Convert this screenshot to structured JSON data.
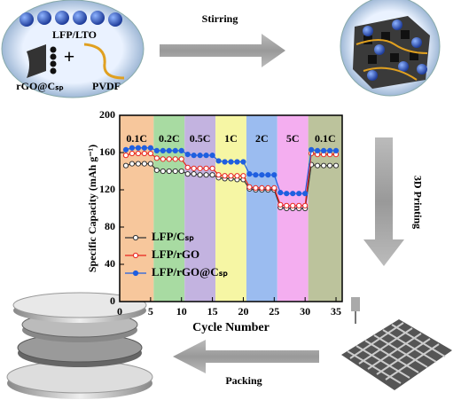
{
  "chart_data": {
    "type": "line",
    "xlabel": "Cycle Number",
    "ylabel": "Specific Capacity (mAh g⁻¹)",
    "xlim": [
      0,
      36
    ],
    "xticks": [
      0,
      5,
      10,
      15,
      20,
      25,
      30,
      35
    ],
    "ylim": [
      0,
      200
    ],
    "yticks": [
      0,
      40,
      80,
      120,
      160,
      200
    ],
    "legend": "lower left",
    "regions": [
      {
        "label": "0.1C",
        "start": 0,
        "end": 5.5,
        "color": "#f7c79c"
      },
      {
        "label": "0.2C",
        "start": 5.5,
        "end": 10.5,
        "color": "#a8dba2"
      },
      {
        "label": "0.5C",
        "start": 10.5,
        "end": 15.5,
        "color": "#c3b3e0"
      },
      {
        "label": "1C",
        "start": 15.5,
        "end": 20.5,
        "color": "#f6f6a4"
      },
      {
        "label": "2C",
        "start": 20.5,
        "end": 25.5,
        "color": "#9bbcf0"
      },
      {
        "label": "5C",
        "start": 25.5,
        "end": 30.5,
        "color": "#f4aef0"
      },
      {
        "label": "0.1C",
        "start": 30.5,
        "end": 36,
        "color": "#bcc39c"
      }
    ],
    "x": [
      1,
      2,
      3,
      4,
      5,
      6,
      7,
      8,
      9,
      10,
      11,
      12,
      13,
      14,
      15,
      16,
      17,
      18,
      19,
      20,
      21,
      22,
      23,
      24,
      25,
      26,
      27,
      28,
      29,
      30,
      31,
      32,
      33,
      34,
      35
    ],
    "series": [
      {
        "name": "LFP/Cₛₚ",
        "color": "#333333",
        "marker": "open",
        "values": [
          146,
          148,
          148,
          148,
          148,
          141,
          140,
          140,
          140,
          140,
          137,
          137,
          136,
          136,
          136,
          133,
          132,
          132,
          131,
          131,
          121,
          120,
          120,
          120,
          120,
          101,
          100,
          100,
          100,
          100,
          147,
          146,
          146,
          146,
          146
        ]
      },
      {
        "name": "LFP/rGO",
        "color": "#e8231c",
        "marker": "open",
        "values": [
          157,
          159,
          159,
          159,
          159,
          154,
          153,
          153,
          153,
          153,
          144,
          143,
          143,
          143,
          143,
          136,
          135,
          135,
          135,
          135,
          123,
          122,
          122,
          122,
          122,
          104,
          103,
          103,
          103,
          103,
          159,
          158,
          158,
          158,
          158
        ]
      },
      {
        "name": "LFP/rGO@Cₛₚ",
        "color": "#1f5fe0",
        "marker": "filled",
        "values": [
          163,
          165,
          165,
          165,
          165,
          162,
          162,
          162,
          162,
          162,
          158,
          157,
          157,
          157,
          157,
          151,
          150,
          150,
          150,
          150,
          137,
          136,
          136,
          136,
          136,
          117,
          116,
          116,
          116,
          116,
          163,
          162,
          162,
          162,
          162
        ]
      }
    ]
  },
  "diagram": {
    "materials": {
      "active": "LFP/LTO",
      "plus": "+",
      "conductive": "rGO@Cₛₚ",
      "binder": "PVDF"
    },
    "steps": {
      "stirring": "Stirring",
      "printing": "3D Printing",
      "packing": "Packing"
    }
  }
}
